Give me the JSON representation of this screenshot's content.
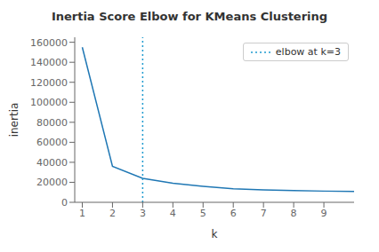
{
  "chart_data": {
    "type": "line",
    "title": "Inertia Score Elbow for KMeans Clustering",
    "xlabel": "k",
    "ylabel": "inertia",
    "x": [
      1,
      2,
      3,
      4,
      5,
      6,
      7,
      8,
      9,
      10
    ],
    "values": [
      155000,
      36000,
      24000,
      19000,
      16000,
      13500,
      12500,
      11800,
      11200,
      10800
    ],
    "color": "#1f77b4",
    "xlim": [
      0.75,
      10.0
    ],
    "xticks": [
      1,
      2,
      3,
      4,
      5,
      6,
      7,
      8,
      9
    ],
    "ylim": [
      0,
      165000
    ],
    "yticks": [
      0,
      20000,
      40000,
      60000,
      80000,
      100000,
      120000,
      140000,
      160000
    ],
    "vlines": [
      {
        "x": 3,
        "name": "elbow at k=3",
        "color": "#1f9bcf",
        "line_style": "dotted"
      }
    ],
    "legend": "upper right",
    "grid": false
  }
}
